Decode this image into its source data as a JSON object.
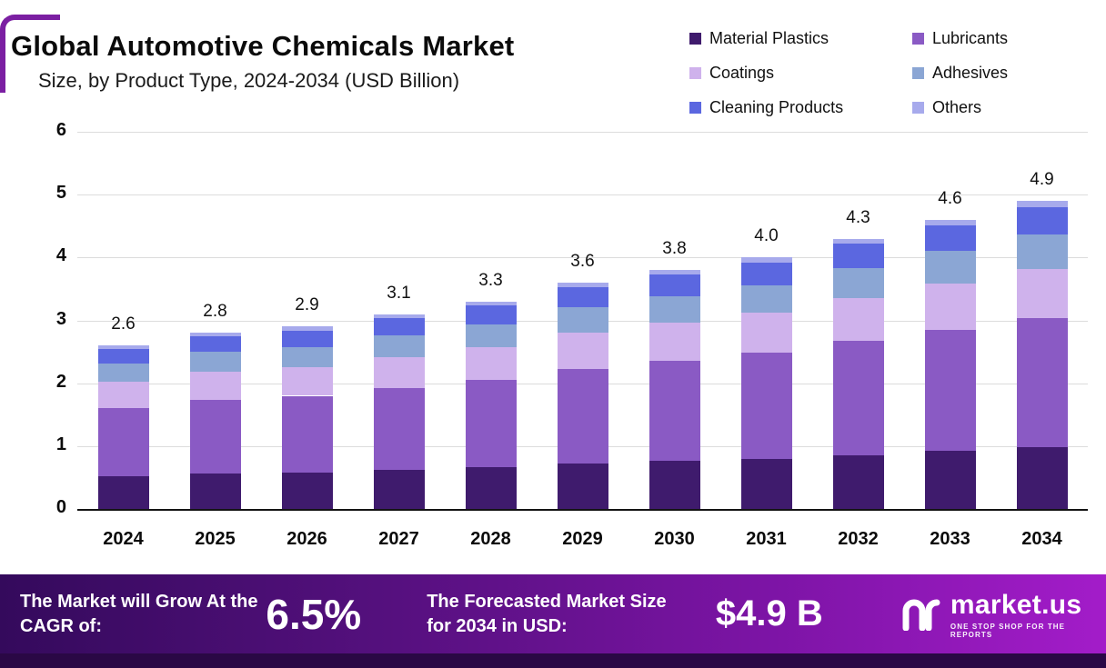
{
  "header": {
    "title": "Global Automotive Chemicals Market",
    "subtitle": "Size, by Product Type, 2024-2034 (USD Billion)"
  },
  "legend": [
    {
      "label": "Material Plastics",
      "color": "#3f1b6d"
    },
    {
      "label": "Lubricants",
      "color": "#8a5ac4"
    },
    {
      "label": "Coatings",
      "color": "#cfb2ec"
    },
    {
      "label": "Adhesives",
      "color": "#8ba6d4"
    },
    {
      "label": "Cleaning Products",
      "color": "#5b67e0"
    },
    {
      "label": "Others",
      "color": "#a7aaec"
    }
  ],
  "chart_data": {
    "type": "bar",
    "stacked": true,
    "title": "Global Automotive Chemicals Market Size, by Product Type, 2024-2034 (USD Billion)",
    "categories": [
      "2024",
      "2025",
      "2026",
      "2027",
      "2028",
      "2029",
      "2030",
      "2031",
      "2032",
      "2033",
      "2034"
    ],
    "totals": [
      2.6,
      2.8,
      2.9,
      3.1,
      3.3,
      3.6,
      3.8,
      4.0,
      4.3,
      4.6,
      4.9
    ],
    "total_labels": [
      "2.6",
      "2.8",
      "2.9",
      "3.1",
      "3.3",
      "3.6",
      "3.8",
      "4.0",
      "4.3",
      "4.6",
      "4.9"
    ],
    "series": [
      {
        "name": "Material Plastics",
        "color": "#3f1b6d",
        "values": [
          0.52,
          0.56,
          0.58,
          0.62,
          0.66,
          0.72,
          0.76,
          0.8,
          0.86,
          0.92,
          0.98
        ]
      },
      {
        "name": "Lubricants",
        "color": "#8a5ac4",
        "values": [
          1.09,
          1.18,
          1.22,
          1.3,
          1.39,
          1.51,
          1.6,
          1.68,
          1.81,
          1.93,
          2.06
        ]
      },
      {
        "name": "Coatings",
        "color": "#cfb2ec",
        "values": [
          0.42,
          0.45,
          0.46,
          0.5,
          0.53,
          0.58,
          0.61,
          0.64,
          0.69,
          0.74,
          0.78
        ]
      },
      {
        "name": "Adhesives",
        "color": "#8ba6d4",
        "values": [
          0.29,
          0.31,
          0.32,
          0.34,
          0.36,
          0.4,
          0.42,
          0.44,
          0.47,
          0.51,
          0.54
        ]
      },
      {
        "name": "Cleaning Products",
        "color": "#5b67e0",
        "values": [
          0.23,
          0.25,
          0.26,
          0.28,
          0.3,
          0.32,
          0.34,
          0.36,
          0.39,
          0.41,
          0.44
        ]
      },
      {
        "name": "Others",
        "color": "#a7aaec",
        "values": [
          0.05,
          0.05,
          0.06,
          0.06,
          0.06,
          0.07,
          0.07,
          0.08,
          0.08,
          0.09,
          0.1
        ]
      }
    ],
    "xlabel": "",
    "ylabel": "",
    "ylim": [
      0,
      6
    ],
    "yticks": [
      0,
      1,
      2,
      3,
      4,
      5,
      6
    ],
    "grid": true,
    "legend_position": "top-right"
  },
  "banner": {
    "cagr_label": "The Market will Grow At the CAGR of:",
    "cagr_value": "6.5%",
    "forecast_label": "The Forecasted Market Size for 2034 in USD:",
    "forecast_value": "$4.9 B",
    "logo_text": "market.us",
    "logo_tagline": "ONE STOP SHOP FOR THE REPORTS"
  }
}
